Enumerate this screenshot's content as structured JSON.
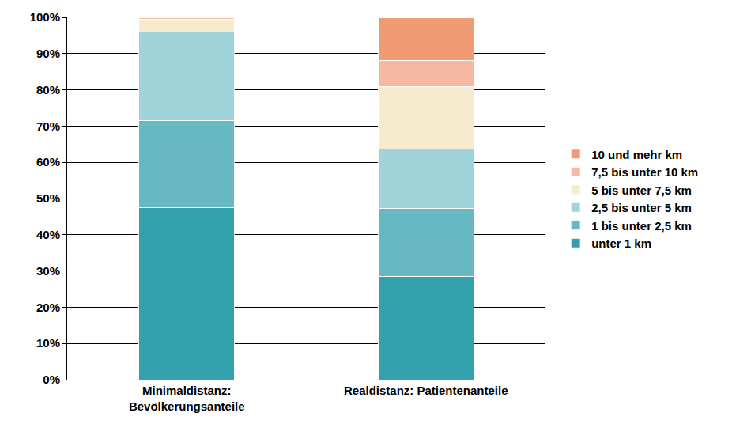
{
  "chart_data": {
    "type": "bar",
    "stacked": true,
    "grid": true,
    "legend": "right",
    "data_labels": false,
    "categories": [
      "Minimaldistanz:\nBevölkerungsanteile",
      "Realdistanz: Patientenanteile"
    ],
    "ylim": [
      0,
      100
    ],
    "yticks": [
      {
        "value": 0,
        "label": "0%"
      },
      {
        "value": 10,
        "label": "10%"
      },
      {
        "value": 20,
        "label": "20%"
      },
      {
        "value": 30,
        "label": "30%"
      },
      {
        "value": 40,
        "label": "40%"
      },
      {
        "value": 50,
        "label": "50%"
      },
      {
        "value": 60,
        "label": "60%"
      },
      {
        "value": 70,
        "label": "70%"
      },
      {
        "value": 80,
        "label": "80%"
      },
      {
        "value": 90,
        "label": "90%"
      },
      {
        "value": 100,
        "label": "100%"
      }
    ],
    "series": [
      {
        "name": "unter 1 km",
        "color": "#33a1ad",
        "values": [
          47.5,
          28.5
        ]
      },
      {
        "name": "1 bis unter 2,5 km",
        "color": "#66b8c3",
        "values": [
          24,
          18.7
        ]
      },
      {
        "name": "2,5 bis unter 5 km",
        "color": "#a0d4db",
        "values": [
          24.5,
          16.5
        ]
      },
      {
        "name": "5 bis unter 7,5 km",
        "color": "#f7ebcf",
        "values": [
          3.5,
          17.1
        ]
      },
      {
        "name": "7,5 bis unter 10 km",
        "color": "#f5b9a1",
        "values": [
          0.3,
          7.2
        ]
      },
      {
        "name": "10 und mehr km",
        "color": "#f09b74",
        "values": [
          0.2,
          12
        ]
      }
    ]
  }
}
